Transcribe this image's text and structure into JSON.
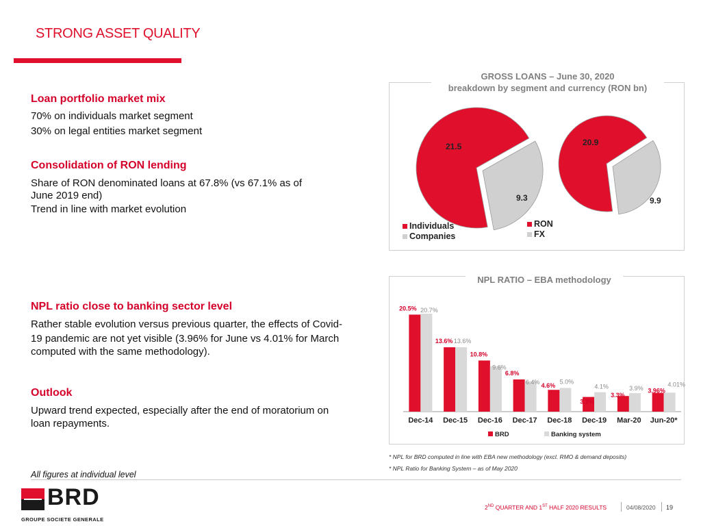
{
  "page": {
    "title": "STRONG ASSET QUALITY"
  },
  "left": {
    "loan_mix_head": "Loan portfolio market mix",
    "loan_mix_line1": "70% on individuals market segment",
    "loan_mix_line2": "30% on legal entities market segment",
    "ron_head": "Consolidation of RON lending",
    "ron_line1": "Share of RON denominated loans at 67.8% (vs 67.1% as of",
    "ron_line2": "June 2019 end)",
    "ron_line3": "Trend in line with market evolution",
    "npl_head": "NPL ratio close to banking sector level",
    "npl_line1": "Rather stable evolution versus previous quarter, the effects of Covid-",
    "npl_line2": "19 pandemic are not yet visible (3.96% for June vs 4.01% for March",
    "npl_line3": "computed with the same methodology).",
    "outlook_head": "Outlook",
    "outlook_line1": "Upward trend expected, especially after the end of moratorium on",
    "outlook_line2": "loan repayments.",
    "all_figures": "All figures at individual level"
  },
  "pie_panel": {
    "title_line1": "GROSS LOANS – June 30, 2020",
    "title_line2": "breakdown by segment and currency (RON bn)",
    "legend_left": [
      {
        "label": "Individuals",
        "color": "#e0102d"
      },
      {
        "label": "Companies",
        "color": "#d0d0d0"
      }
    ],
    "legend_right": [
      {
        "label": "RON",
        "color": "#e0102d"
      },
      {
        "label": "FX",
        "color": "#d0d0d0"
      }
    ]
  },
  "bar_panel": {
    "title": "NPL RATIO – EBA methodology",
    "footnote1": "*  NPL for BRD computed in line with EBA new methodology (excl. RMO & demand deposits)",
    "footnote2": "*  NPL Ratio for Banking System – as of May 2020"
  },
  "footer": {
    "results_pre": "2",
    "results_sup1": "ND",
    "results_mid": " QUARTER AND 1",
    "results_sup2": "ST",
    "results_post": " HALF 2020 RESULTS",
    "date": "04/08/2020",
    "page_number": "19"
  },
  "logo": {
    "name": "BRD",
    "subtitle": "GROUPE SOCIETE GENERALE"
  },
  "colors": {
    "brand_red": "#e0102d",
    "grey": "#d0d0d0"
  },
  "chart_data": [
    {
      "type": "pie",
      "title": "GROSS LOANS – June 30, 2020 breakdown by segment and currency (RON bn)",
      "categories": [
        "Individuals",
        "Companies"
      ],
      "values": [
        21.5,
        9.3
      ],
      "labels": [
        "21.5",
        "9.3"
      ],
      "colors": [
        "#e0102d",
        "#d0d0d0"
      ]
    },
    {
      "type": "pie",
      "categories": [
        "RON",
        "FX"
      ],
      "values": [
        20.9,
        9.9
      ],
      "labels": [
        "20.9",
        "9.9"
      ],
      "colors": [
        "#e0102d",
        "#d0d0d0"
      ]
    },
    {
      "type": "bar",
      "title": "NPL RATIO – EBA methodology",
      "categories": [
        "Dec-14",
        "Dec-15",
        "Dec-16",
        "Dec-17",
        "Dec-18",
        "Dec-19",
        "Mar-20",
        "Jun-20*"
      ],
      "series": [
        {
          "name": "BRD",
          "color": "#e0102d",
          "values": [
            20.5,
            13.6,
            10.8,
            6.8,
            4.6,
            3.1,
            3.3,
            3.96
          ],
          "labels": [
            "20.5%",
            "13.6%",
            "10.8%",
            "6.8%",
            "4.6%",
            "3.1%",
            "3.3%",
            "3.96%"
          ]
        },
        {
          "name": "Banking system",
          "color": "#d9d9d9",
          "values": [
            20.7,
            13.6,
            9.6,
            6.4,
            5.0,
            4.1,
            3.9,
            4.01
          ],
          "labels": [
            "20.7%",
            "13.6%",
            "9.6%",
            "6.4%",
            "5.0%",
            "4.1%",
            "3.9%",
            "4.01%"
          ]
        }
      ],
      "legend": "bottom",
      "ylim": [
        0,
        22
      ],
      "grid": false
    }
  ]
}
